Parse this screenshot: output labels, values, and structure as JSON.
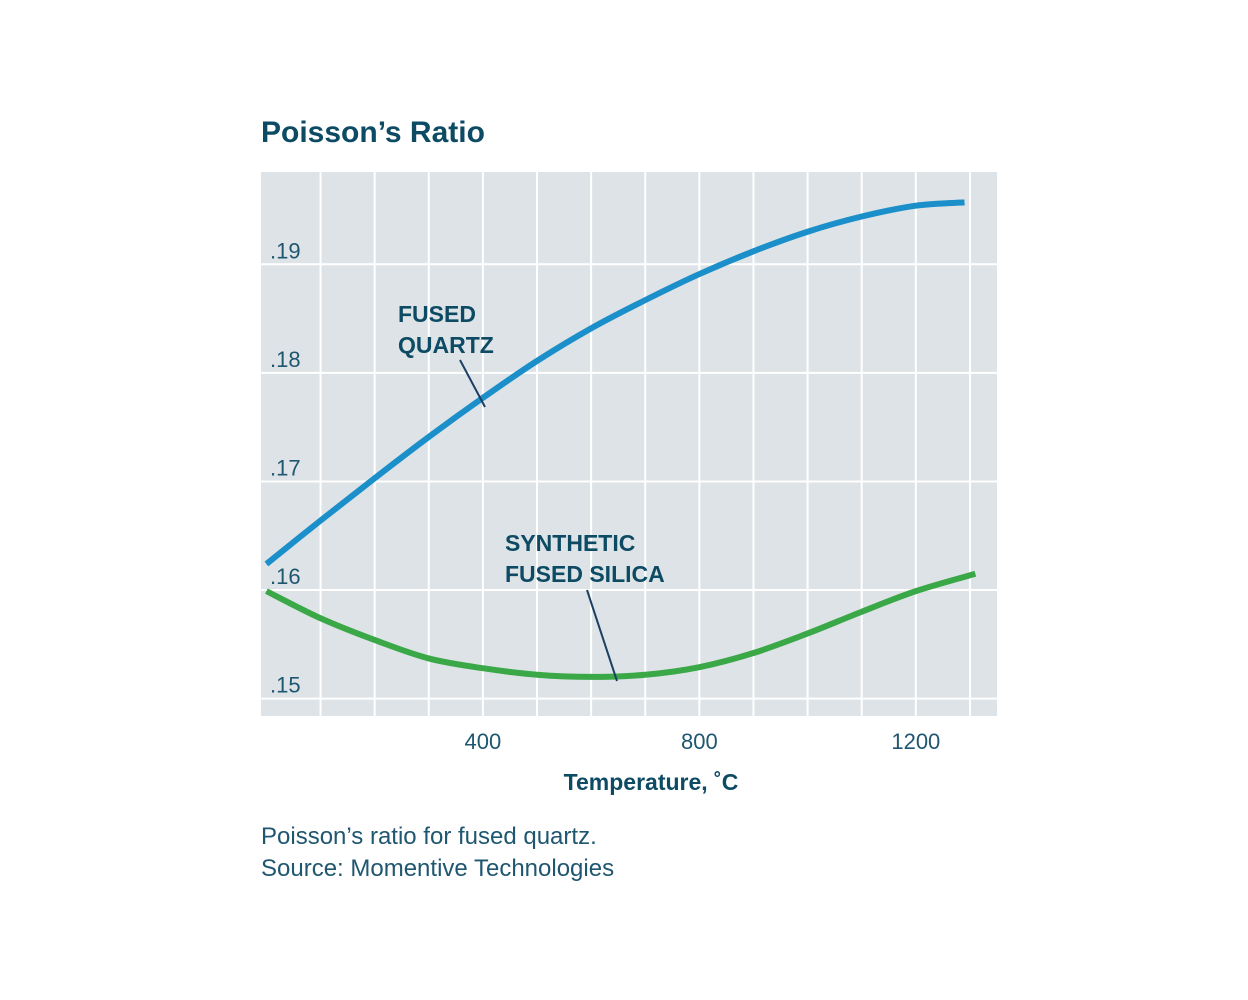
{
  "colors": {
    "plot_background": "#dde3e6",
    "grid": "#ffffff",
    "fused_quartz": "#1b8fc9",
    "synthetic_fused_silica": "#3aa847",
    "text": "#0d4a63",
    "leader": "#1d3f63"
  },
  "caption": {
    "line1": "Poisson’s ratio for fused quartz.",
    "line2": "Source: Momentive Technologies"
  },
  "chart_data": {
    "type": "line",
    "title": "Poisson’s Ratio",
    "xlabel": "Temperature, ˚C",
    "ylabel": "",
    "xlim": [
      -10,
      1350
    ],
    "ylim": [
      0.1484,
      0.1985
    ],
    "xticks": [
      400,
      800,
      1200
    ],
    "xtick_labels": [
      "400",
      "800",
      "1200"
    ],
    "yticks": [
      0.15,
      0.16,
      0.17,
      0.18,
      0.19
    ],
    "ytick_labels": [
      ".15",
      ".16",
      ".17",
      ".18",
      ".19"
    ],
    "grid": true,
    "legend": "none",
    "series": [
      {
        "name": "FUSED QUARTZ",
        "label_lines": [
          "FUSED",
          "QUARTZ"
        ],
        "color_key": "fused_quartz",
        "x": [
          0,
          100,
          200,
          300,
          400,
          500,
          600,
          700,
          800,
          900,
          1000,
          1100,
          1200,
          1290
        ],
        "y": [
          0.1624,
          0.1664,
          0.1703,
          0.1741,
          0.1777,
          0.1811,
          0.1841,
          0.1867,
          0.1891,
          0.1912,
          0.193,
          0.1944,
          0.1954,
          0.1957
        ]
      },
      {
        "name": "SYNTHETIC FUSED SILICA",
        "label_lines": [
          "SYNTHETIC",
          "FUSED SILICA"
        ],
        "color_key": "synthetic_fused_silica",
        "x": [
          0,
          100,
          200,
          300,
          400,
          500,
          600,
          700,
          800,
          900,
          1000,
          1100,
          1200,
          1310
        ],
        "y": [
          0.1599,
          0.1574,
          0.1554,
          0.1537,
          0.1528,
          0.1522,
          0.152,
          0.1522,
          0.1529,
          0.1542,
          0.156,
          0.158,
          0.1599,
          0.1615
        ]
      }
    ]
  }
}
